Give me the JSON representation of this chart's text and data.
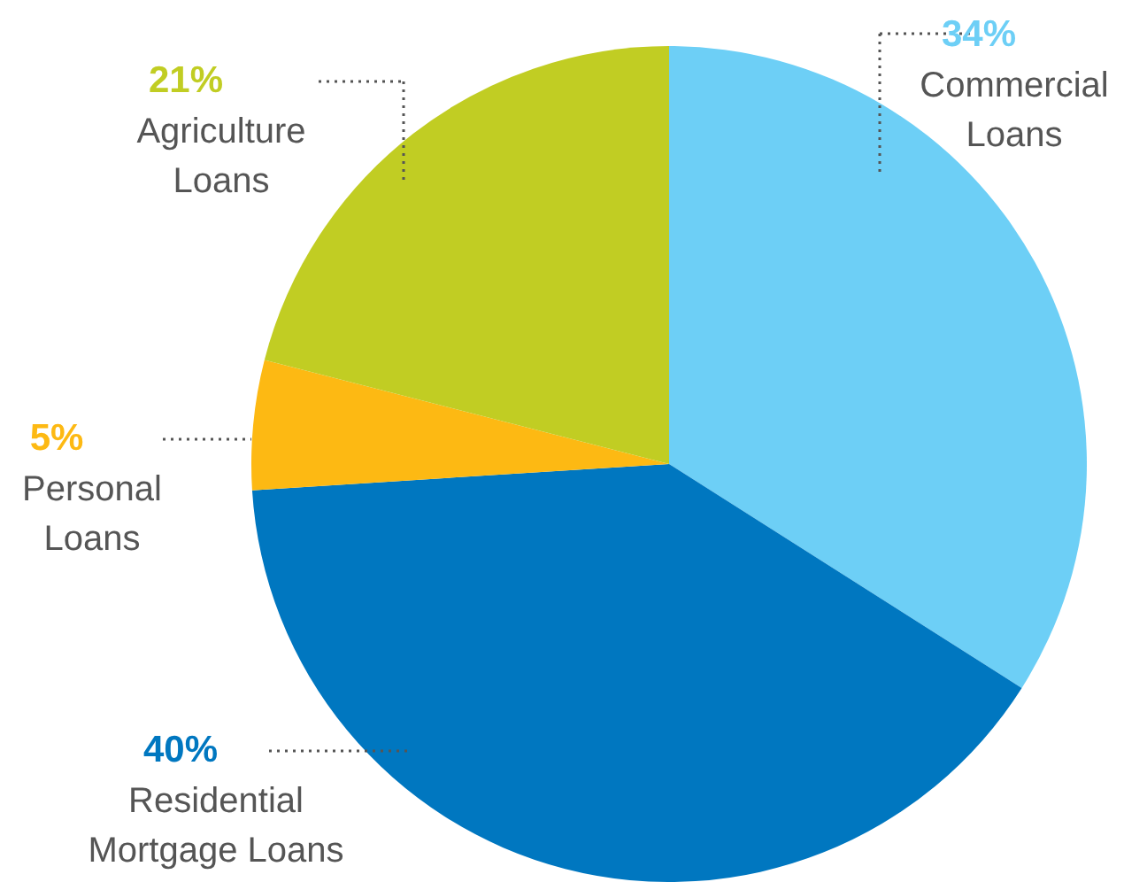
{
  "chart_data": {
    "type": "pie",
    "categories": [
      "Commercial Loans",
      "Residential Mortgage Loans",
      "Personal Loans",
      "Agriculture Loans"
    ],
    "values": [
      34,
      40,
      5,
      21
    ],
    "colors": [
      "#6dcff6",
      "#0077c0",
      "#fdb913",
      "#c1cd23"
    ],
    "value_labels": [
      "34%",
      "40%",
      "5%",
      "21%"
    ]
  }
}
